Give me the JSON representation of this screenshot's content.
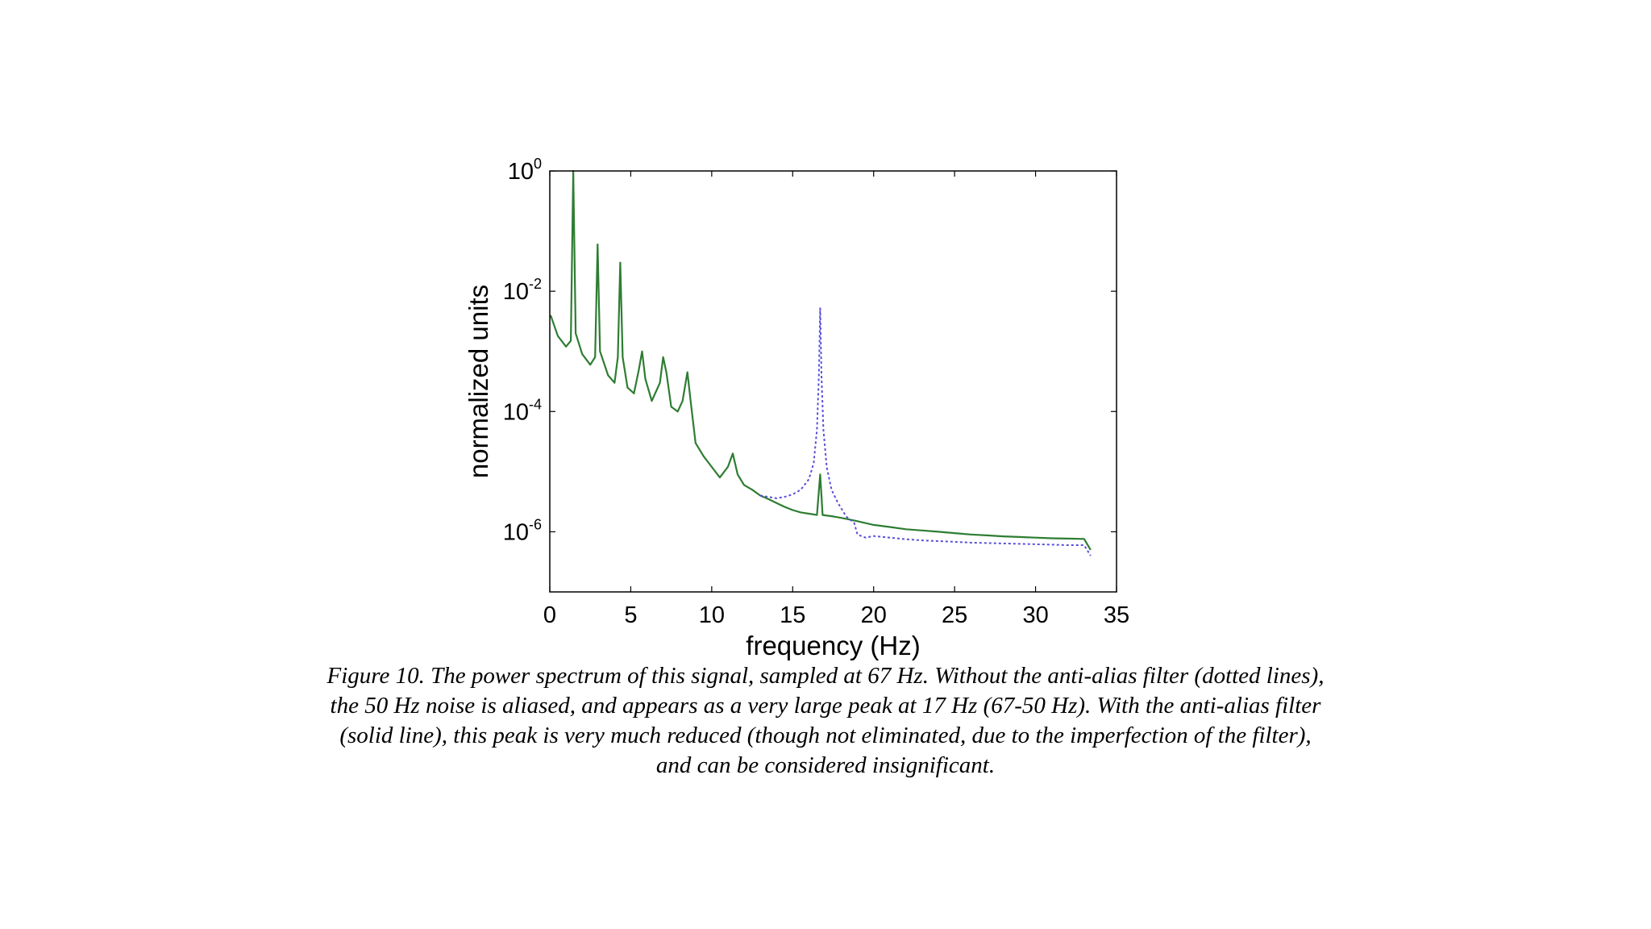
{
  "chart_data": {
    "type": "line",
    "xlabel": "frequency (Hz)",
    "ylabel": "normalized units",
    "xlim": [
      0,
      35
    ],
    "ylim": [
      1e-07,
      1
    ],
    "yscale": "log",
    "x_ticks": [
      "0",
      "5",
      "10",
      "15",
      "20",
      "25",
      "30",
      "35"
    ],
    "y_ticks": [
      {
        "base": "10",
        "exp": "0",
        "value": 1
      },
      {
        "base": "10",
        "exp": "-2",
        "value": 0.01
      },
      {
        "base": "10",
        "exp": "-4",
        "value": 0.0001
      },
      {
        "base": "10",
        "exp": "-6",
        "value": 1e-06
      }
    ],
    "grid": false,
    "series": [
      {
        "style": "solid",
        "color": "#2e7d32",
        "points": [
          [
            0.05,
            0.004
          ],
          [
            0.5,
            0.0018
          ],
          [
            1.0,
            0.0012
          ],
          [
            1.3,
            0.0015
          ],
          [
            1.45,
            1.0
          ],
          [
            1.6,
            0.002
          ],
          [
            2.0,
            0.0009
          ],
          [
            2.5,
            0.0006
          ],
          [
            2.8,
            0.0008
          ],
          [
            2.95,
            0.06
          ],
          [
            3.1,
            0.001
          ],
          [
            3.6,
            0.0004
          ],
          [
            4.0,
            0.0003
          ],
          [
            4.2,
            0.0008
          ],
          [
            4.35,
            0.03
          ],
          [
            4.5,
            0.0008
          ],
          [
            4.8,
            0.00025
          ],
          [
            5.2,
            0.0002
          ],
          [
            5.5,
            0.0005
          ],
          [
            5.7,
            0.001
          ],
          [
            5.9,
            0.00035
          ],
          [
            6.3,
            0.00015
          ],
          [
            6.8,
            0.0003
          ],
          [
            7.0,
            0.0008
          ],
          [
            7.2,
            0.00045
          ],
          [
            7.5,
            0.00012
          ],
          [
            7.9,
            0.0001
          ],
          [
            8.2,
            0.00015
          ],
          [
            8.5,
            0.00045
          ],
          [
            8.7,
            0.00015
          ],
          [
            9.0,
            3e-05
          ],
          [
            9.5,
            1.8e-05
          ],
          [
            10.0,
            1.2e-05
          ],
          [
            10.5,
            8e-06
          ],
          [
            11.0,
            1.2e-05
          ],
          [
            11.3,
            2e-05
          ],
          [
            11.6,
            9e-06
          ],
          [
            12.0,
            6e-06
          ],
          [
            12.5,
            5e-06
          ],
          [
            13.0,
            4e-06
          ],
          [
            13.5,
            3.5e-06
          ],
          [
            14.0,
            3e-06
          ],
          [
            14.5,
            2.6e-06
          ],
          [
            15.0,
            2.3e-06
          ],
          [
            15.5,
            2.1e-06
          ],
          [
            16.0,
            2e-06
          ],
          [
            16.5,
            1.9e-06
          ],
          [
            16.7,
            9e-06
          ],
          [
            16.85,
            1.9e-06
          ],
          [
            17.5,
            1.8e-06
          ],
          [
            18.0,
            1.7e-06
          ],
          [
            18.5,
            1.6e-06
          ],
          [
            19.0,
            1.5e-06
          ],
          [
            20.0,
            1.3e-06
          ],
          [
            21.0,
            1.2e-06
          ],
          [
            22.0,
            1.1e-06
          ],
          [
            23.0,
            1.05e-06
          ],
          [
            24.0,
            1e-06
          ],
          [
            25.0,
            9.5e-07
          ],
          [
            26.0,
            9e-07
          ],
          [
            27.0,
            8.7e-07
          ],
          [
            28.0,
            8.4e-07
          ],
          [
            29.0,
            8.2e-07
          ],
          [
            30.0,
            8e-07
          ],
          [
            31.0,
            7.8e-07
          ],
          [
            32.0,
            7.7e-07
          ],
          [
            33.0,
            7.6e-07
          ],
          [
            33.4,
            5e-07
          ]
        ]
      },
      {
        "style": "dotted",
        "color": "#5a4fd8",
        "points": [
          [
            13.0,
            4e-06
          ],
          [
            13.5,
            3.8e-06
          ],
          [
            14.0,
            3.6e-06
          ],
          [
            14.5,
            3.8e-06
          ],
          [
            15.0,
            4.2e-06
          ],
          [
            15.5,
            5e-06
          ],
          [
            16.0,
            7.5e-06
          ],
          [
            16.3,
            1.4e-05
          ],
          [
            16.5,
            5e-05
          ],
          [
            16.62,
            0.0004
          ],
          [
            16.7,
            0.0052
          ],
          [
            16.78,
            0.0004
          ],
          [
            16.9,
            5e-05
          ],
          [
            17.1,
            1.2e-05
          ],
          [
            17.4,
            5e-06
          ],
          [
            17.8,
            3e-06
          ],
          [
            18.3,
            1.8e-06
          ],
          [
            18.8,
            1.4e-06
          ],
          [
            19.0,
            9e-07
          ],
          [
            19.5,
            8e-07
          ],
          [
            20.0,
            8.5e-07
          ],
          [
            21.0,
            8e-07
          ],
          [
            22.0,
            7.5e-07
          ],
          [
            23.0,
            7.2e-07
          ],
          [
            24.0,
            7e-07
          ],
          [
            25.0,
            6.8e-07
          ],
          [
            26.0,
            6.6e-07
          ],
          [
            27.0,
            6.5e-07
          ],
          [
            28.0,
            6.4e-07
          ],
          [
            29.0,
            6.3e-07
          ],
          [
            30.0,
            6.2e-07
          ],
          [
            31.0,
            6.1e-07
          ],
          [
            32.0,
            6e-07
          ],
          [
            33.0,
            6e-07
          ],
          [
            33.4,
            4e-07
          ]
        ]
      }
    ]
  },
  "caption": "Figure 10. The power spectrum of this signal, sampled at 67 Hz. Without the anti-alias filter (dotted lines), the 50 Hz noise is aliased, and appears as a very large peak at 17 Hz (67-50 Hz). With the anti-alias filter (solid line), this peak is very much reduced (though not eliminated, due to the imperfection of the filter), and can be considered insignificant."
}
